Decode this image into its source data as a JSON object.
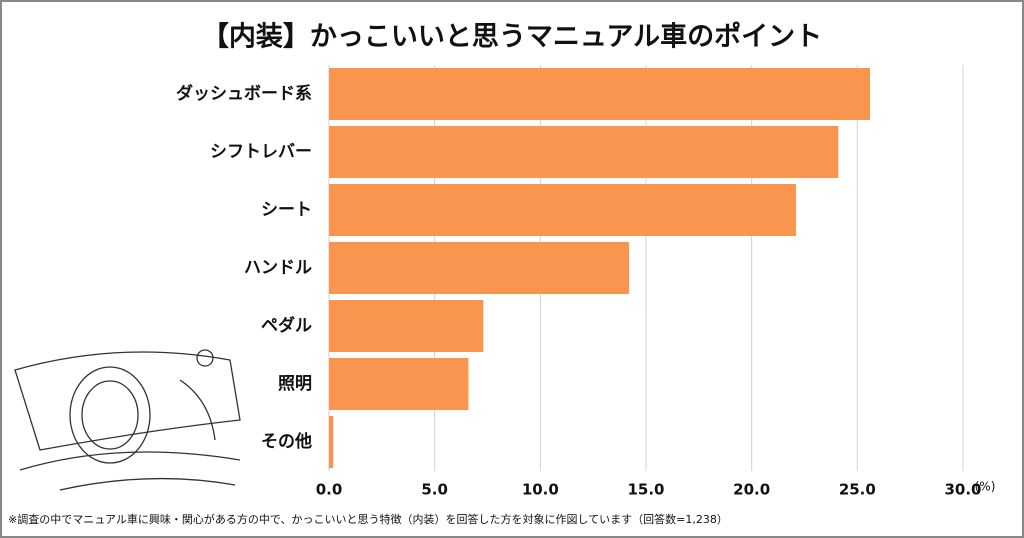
{
  "chart_data": {
    "type": "bar",
    "orientation": "horizontal",
    "title": "【内装】かっこいいと思うマニュアル車のポイント",
    "categories": [
      "ダッシュボード系",
      "シフトレバー",
      "シート",
      "ハンドル",
      "ペダル",
      "照明",
      "その他"
    ],
    "values": [
      25.6,
      24.1,
      22.1,
      14.2,
      7.3,
      6.6,
      0.2
    ],
    "color": "#f9954f",
    "xlim": [
      0,
      30
    ],
    "xticks": [
      {
        "value": 0,
        "label": "0.0"
      },
      {
        "value": 5,
        "label": "5.0"
      },
      {
        "value": 10,
        "label": "10.0"
      },
      {
        "value": 15,
        "label": "15.0"
      },
      {
        "value": 20,
        "label": "20.0"
      },
      {
        "value": 25,
        "label": "25.0"
      },
      {
        "value": 30,
        "label": "30.0"
      }
    ],
    "unit": "(%)",
    "grid": true,
    "note": "※調査の中でマニュアル車に興味・関心がある方の中で、かっこいいと思う特徴（内装）を回答した方を対象に作図しています（回答数=1,238）"
  }
}
